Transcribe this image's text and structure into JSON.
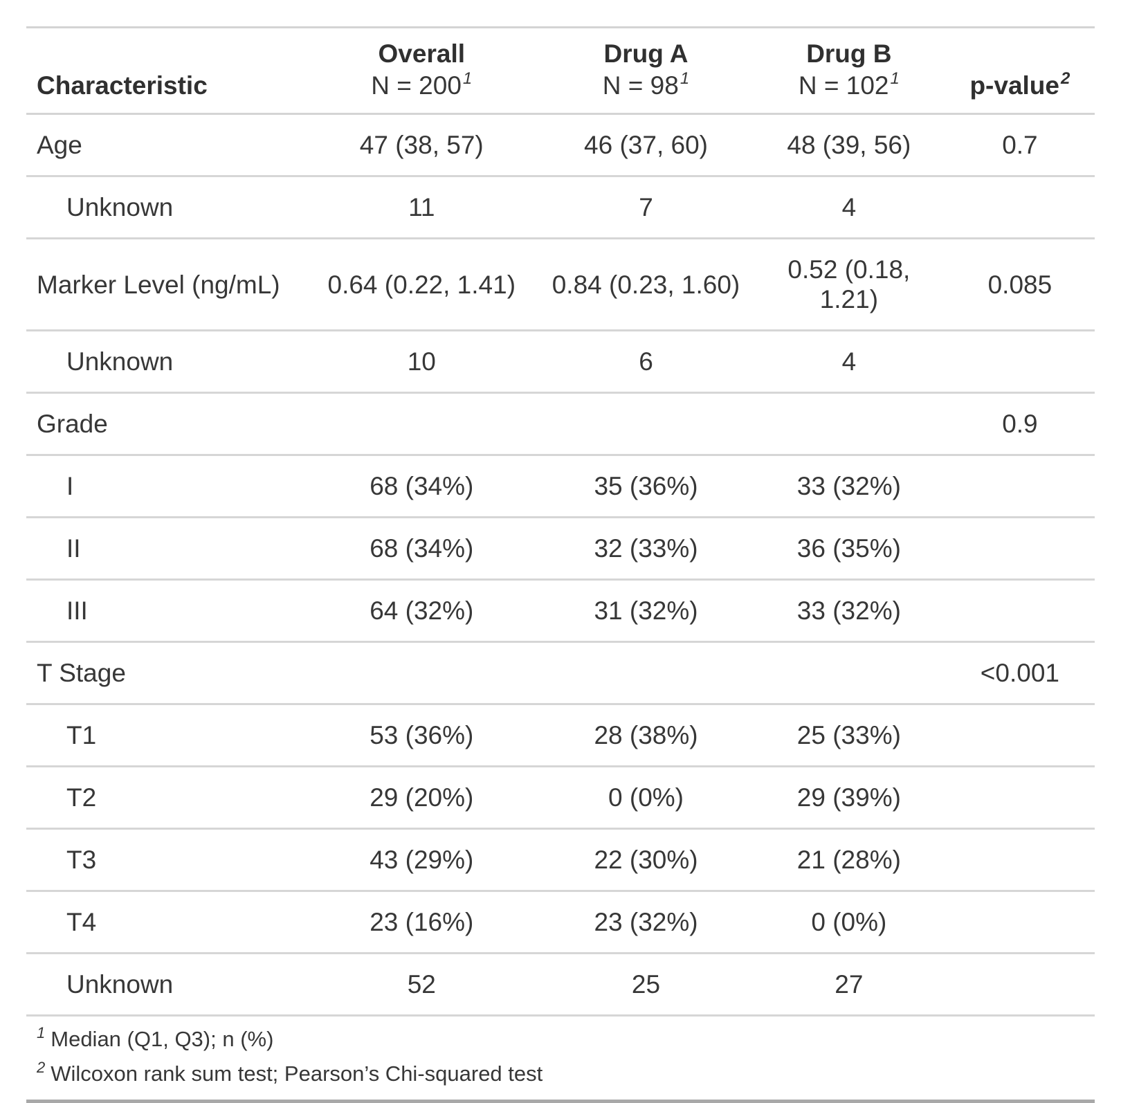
{
  "colors": {
    "text": "#373737",
    "rule_light": "#d4d4d4",
    "rule_dark_bottom": "#a8a8a8",
    "background": "#ffffff"
  },
  "chart_data": {
    "type": "table",
    "header": {
      "characteristic": "Characteristic",
      "groups": [
        {
          "label": "Overall",
          "n": "N = 200",
          "footnote_mark": "1"
        },
        {
          "label": "Drug A",
          "n": "N = 98",
          "footnote_mark": "1"
        },
        {
          "label": "Drug B",
          "n": "N = 102",
          "footnote_mark": "1"
        }
      ],
      "p_value": {
        "label": "p-value",
        "footnote_mark": "2"
      }
    },
    "rows": [
      {
        "label": "Age",
        "indent": false,
        "overall": "47 (38, 57)",
        "drug_a": "46 (37, 60)",
        "drug_b": "48 (39, 56)",
        "p_value": "0.7"
      },
      {
        "label": "Unknown",
        "indent": true,
        "overall": "11",
        "drug_a": "7",
        "drug_b": "4",
        "p_value": ""
      },
      {
        "label": "Marker Level (ng/mL)",
        "indent": false,
        "overall": "0.64 (0.22, 1.41)",
        "drug_a": "0.84 (0.23, 1.60)",
        "drug_b": "0.52 (0.18, 1.21)",
        "p_value": "0.085"
      },
      {
        "label": "Unknown",
        "indent": true,
        "overall": "10",
        "drug_a": "6",
        "drug_b": "4",
        "p_value": ""
      },
      {
        "label": "Grade",
        "indent": false,
        "overall": "",
        "drug_a": "",
        "drug_b": "",
        "p_value": "0.9"
      },
      {
        "label": "I",
        "indent": true,
        "overall": "68 (34%)",
        "drug_a": "35 (36%)",
        "drug_b": "33 (32%)",
        "p_value": ""
      },
      {
        "label": "II",
        "indent": true,
        "overall": "68 (34%)",
        "drug_a": "32 (33%)",
        "drug_b": "36 (35%)",
        "p_value": ""
      },
      {
        "label": "III",
        "indent": true,
        "overall": "64 (32%)",
        "drug_a": "31 (32%)",
        "drug_b": "33 (32%)",
        "p_value": ""
      },
      {
        "label": "T Stage",
        "indent": false,
        "overall": "",
        "drug_a": "",
        "drug_b": "",
        "p_value": "<0.001"
      },
      {
        "label": "T1",
        "indent": true,
        "overall": "53 (36%)",
        "drug_a": "28 (38%)",
        "drug_b": "25 (33%)",
        "p_value": ""
      },
      {
        "label": "T2",
        "indent": true,
        "overall": "29 (20%)",
        "drug_a": "0 (0%)",
        "drug_b": "29 (39%)",
        "p_value": ""
      },
      {
        "label": "T3",
        "indent": true,
        "overall": "43 (29%)",
        "drug_a": "22 (30%)",
        "drug_b": "21 (28%)",
        "p_value": ""
      },
      {
        "label": "T4",
        "indent": true,
        "overall": "23 (16%)",
        "drug_a": "23 (32%)",
        "drug_b": "0 (0%)",
        "p_value": ""
      },
      {
        "label": "Unknown",
        "indent": true,
        "overall": "52",
        "drug_a": "25",
        "drug_b": "27",
        "p_value": ""
      }
    ],
    "footnotes": [
      {
        "mark": "1",
        "text": "Median (Q1, Q3); n (%)"
      },
      {
        "mark": "2",
        "text": "Wilcoxon rank sum test; Pearson’s Chi-squared test"
      }
    ]
  }
}
